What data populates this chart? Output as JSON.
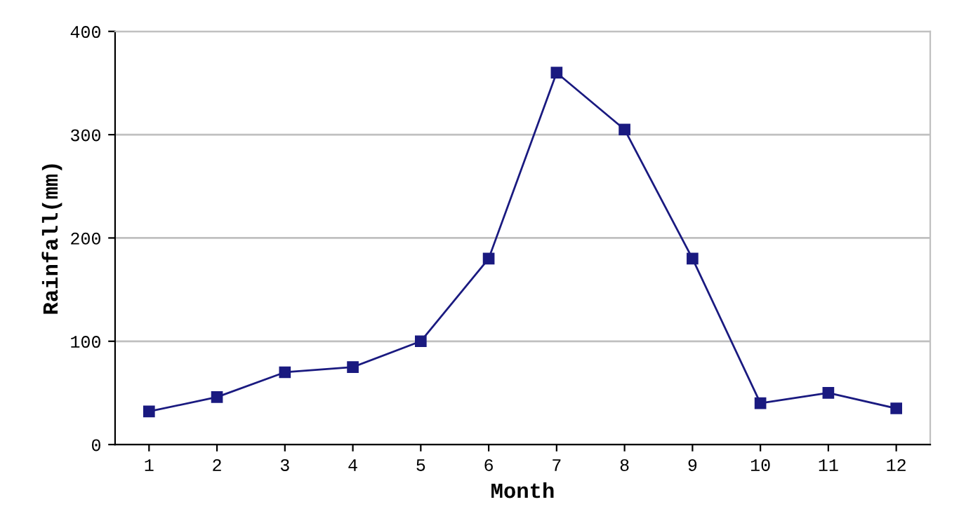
{
  "chart_data": {
    "type": "line",
    "xlabel": "Month",
    "ylabel": "Rainfall(mm)",
    "categories": [
      "1",
      "2",
      "3",
      "4",
      "5",
      "6",
      "7",
      "8",
      "9",
      "10",
      "11",
      "12"
    ],
    "series": [
      {
        "color": "#1a1a80",
        "values": [
          32,
          46,
          70,
          75,
          100,
          180,
          360,
          305,
          180,
          40,
          50,
          35
        ]
      }
    ],
    "ylim": [
      0,
      400
    ],
    "yticks": [
      0,
      100,
      200,
      300,
      400
    ],
    "grid": "y",
    "marker": "square",
    "line_style": "solid"
  }
}
